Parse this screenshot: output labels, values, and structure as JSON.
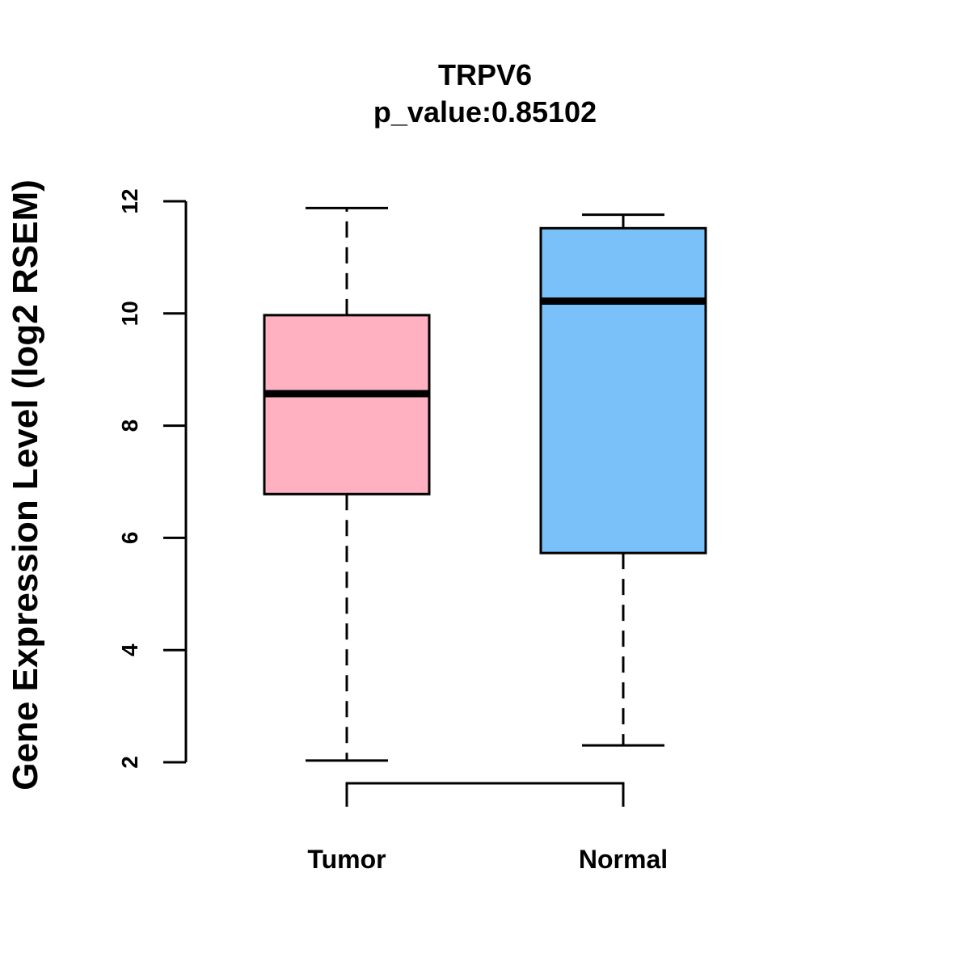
{
  "chart_data": {
    "type": "box",
    "title": "TRPV6",
    "subtitle": "p_value:0.85102",
    "ylabel": "Gene Expression Level (log2 RSEM)",
    "xlabel": "",
    "ylim": [
      2,
      12
    ],
    "yticks": [
      "2",
      "4",
      "6",
      "8",
      "10",
      "12"
    ],
    "grid": false,
    "legend": "none",
    "categories": [
      "Tumor",
      "Normal"
    ],
    "boxes": [
      {
        "category": "Tumor",
        "min": 2.03,
        "q1": 6.78,
        "median": 8.57,
        "q3": 9.97,
        "max": 11.88,
        "color": "#FFB1C1"
      },
      {
        "category": "Normal",
        "min": 2.3,
        "q1": 5.73,
        "median": 10.22,
        "q3": 11.52,
        "max": 11.76,
        "color": "#79C1F8"
      }
    ],
    "comparison_bracket": [
      "Tumor",
      "Normal"
    ]
  }
}
